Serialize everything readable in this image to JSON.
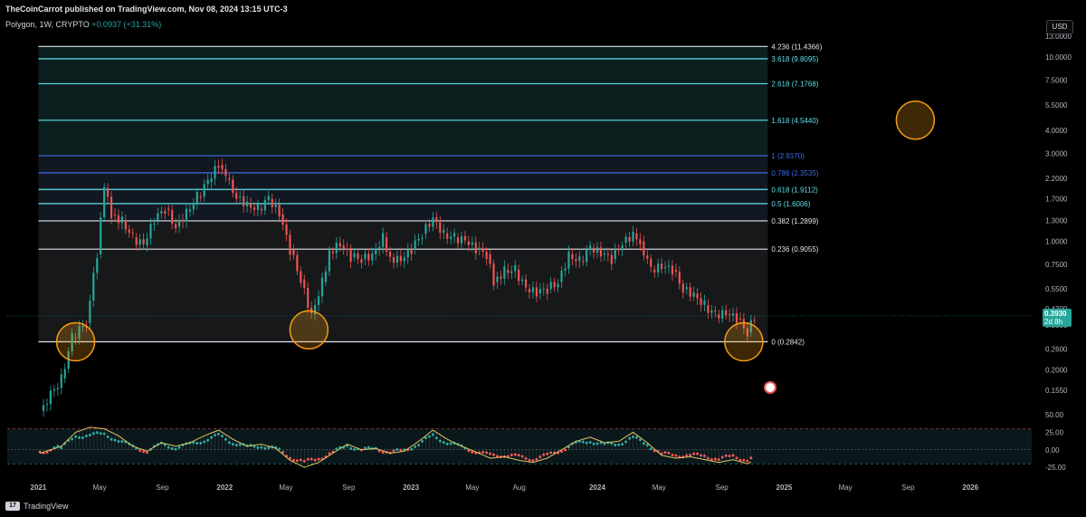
{
  "header": {
    "publisher_line": "TheCoinCarrot published on TradingView.com, Nov 08, 2024 13:15 UTC-3"
  },
  "symbol": {
    "name": "Polygon, 1W, CRYPTO",
    "change": "+0.0937 (+31.31%)"
  },
  "currency_button": "USD",
  "footer": {
    "brand": "TradingView",
    "brand_mark": "17"
  },
  "colors": {
    "up": "#26a69a",
    "down": "#ef5350",
    "fib_white": "#e0e3eb",
    "fib_cyan": "#5ee0e8",
    "fib_blue": "#3d6ce8",
    "circle": "#f39c12",
    "osc_line": "#e0c25c",
    "zone": "#1c3a3a"
  },
  "price_label": {
    "value": "0.3930",
    "countdown": "2d 8h"
  },
  "chart_data": {
    "type": "candlestick",
    "scale": "log",
    "title": "",
    "y_ticks": [
      "13.0000",
      "10.0000",
      "7.5000",
      "5.5000",
      "4.0000",
      "3.0000",
      "2.2000",
      "1.7000",
      "1.3000",
      "1.0000",
      "0.7500",
      "0.5500",
      "0.4300",
      "0.3500",
      "0.2600",
      "0.2000",
      "0.1550"
    ],
    "y_tick_values": [
      13.0,
      10.0,
      7.5,
      5.5,
      4.0,
      3.0,
      2.2,
      1.7,
      1.3,
      1.0,
      0.75,
      0.55,
      0.43,
      0.35,
      0.26,
      0.2,
      0.155
    ],
    "x_ticks": [
      "2021",
      "May",
      "Sep",
      "2022",
      "May",
      "Sep",
      "2023",
      "May",
      "Aug",
      "2024",
      "May",
      "Sep",
      "2025",
      "May",
      "Sep",
      "2026"
    ],
    "x_tick_dates": [
      "2021-01-01",
      "2021-05-01",
      "2021-09-01",
      "2022-01-01",
      "2022-05-01",
      "2022-09-01",
      "2023-01-01",
      "2023-05-01",
      "2023-08-01",
      "2024-01-01",
      "2024-05-01",
      "2024-09-01",
      "2025-01-01",
      "2025-05-01",
      "2025-09-01",
      "2026-01-01"
    ],
    "fib_levels": [
      {
        "label": "4.236 (11.4366)",
        "value": 11.4366,
        "color": "#e0e3eb"
      },
      {
        "label": "3.618 (9.8095)",
        "value": 9.8095,
        "color": "#5ee0e8"
      },
      {
        "label": "2.618 (7.1768)",
        "value": 7.1768,
        "color": "#5ee0e8"
      },
      {
        "label": "1.618 (4.5440)",
        "value": 4.544,
        "color": "#5ee0e8"
      },
      {
        "label": "1 (2.9170)",
        "value": 2.917,
        "color": "#3d6ce8"
      },
      {
        "label": "0.786 (2.3535)",
        "value": 2.3535,
        "color": "#3d6ce8"
      },
      {
        "label": "0.618 (1.9112)",
        "value": 1.9112,
        "color": "#5ee0e8"
      },
      {
        "label": "0.5 (1.6006)",
        "value": 1.6006,
        "color": "#5ee0e8"
      },
      {
        "label": "0.382 (1.2899)",
        "value": 1.2899,
        "color": "#e0e3eb"
      },
      {
        "label": "0.236 (0.9055)",
        "value": 0.9055,
        "color": "#e0e3eb"
      },
      {
        "label": "0 (0.2842)",
        "value": 0.2842,
        "color": "#e0e3eb"
      }
    ],
    "fib_start": "2021-01-01",
    "fib_end": "2024-11-30",
    "circles": [
      {
        "date": "2021-03-15",
        "value": 0.2842
      },
      {
        "date": "2022-06-15",
        "value": 0.33
      },
      {
        "date": "2024-10-14",
        "value": 0.2842
      },
      {
        "date": "2025-09-15",
        "value": 4.544
      }
    ],
    "price_series": [
      [
        "2021-01-04",
        0.12
      ],
      [
        "2021-02-15",
        0.18
      ],
      [
        "2021-03-08",
        0.3
      ],
      [
        "2021-04-05",
        0.36
      ],
      [
        "2021-04-26",
        0.85
      ],
      [
        "2021-05-10",
        1.95
      ],
      [
        "2021-05-24",
        1.4
      ],
      [
        "2021-06-14",
        1.3
      ],
      [
        "2021-07-05",
        1.05
      ],
      [
        "2021-07-26",
        0.95
      ],
      [
        "2021-08-16",
        1.3
      ],
      [
        "2021-09-06",
        1.5
      ],
      [
        "2021-09-27",
        1.2
      ],
      [
        "2021-10-18",
        1.45
      ],
      [
        "2021-11-08",
        1.75
      ],
      [
        "2021-11-29",
        2.1
      ],
      [
        "2021-12-20",
        2.6
      ],
      [
        "2022-01-03",
        2.2
      ],
      [
        "2022-01-24",
        1.75
      ],
      [
        "2022-02-14",
        1.6
      ],
      [
        "2022-03-07",
        1.5
      ],
      [
        "2022-03-28",
        1.7
      ],
      [
        "2022-04-18",
        1.4
      ],
      [
        "2022-05-09",
        0.9
      ],
      [
        "2022-05-30",
        0.62
      ],
      [
        "2022-06-20",
        0.4
      ],
      [
        "2022-07-11",
        0.6
      ],
      [
        "2022-07-25",
        0.88
      ],
      [
        "2022-08-15",
        0.95
      ],
      [
        "2022-09-05",
        0.82
      ],
      [
        "2022-09-26",
        0.8
      ],
      [
        "2022-10-17",
        0.85
      ],
      [
        "2022-11-07",
        1.05
      ],
      [
        "2022-11-21",
        0.82
      ],
      [
        "2022-12-12",
        0.78
      ],
      [
        "2023-01-02",
        0.9
      ],
      [
        "2023-01-23",
        1.1
      ],
      [
        "2023-02-13",
        1.35
      ],
      [
        "2023-03-06",
        1.1
      ],
      [
        "2023-03-27",
        1.05
      ],
      [
        "2023-04-17",
        1.0
      ],
      [
        "2023-05-08",
        0.9
      ],
      [
        "2023-05-29",
        0.85
      ],
      [
        "2023-06-12",
        0.6
      ],
      [
        "2023-07-03",
        0.7
      ],
      [
        "2023-07-24",
        0.7
      ],
      [
        "2023-08-14",
        0.55
      ],
      [
        "2023-09-04",
        0.52
      ],
      [
        "2023-09-25",
        0.55
      ],
      [
        "2023-10-16",
        0.6
      ],
      [
        "2023-11-06",
        0.85
      ],
      [
        "2023-11-27",
        0.78
      ],
      [
        "2023-12-18",
        0.92
      ],
      [
        "2024-01-08",
        0.85
      ],
      [
        "2024-01-29",
        0.8
      ],
      [
        "2024-02-19",
        0.98
      ],
      [
        "2024-03-11",
        1.1
      ],
      [
        "2024-03-25",
        1.0
      ],
      [
        "2024-04-15",
        0.7
      ],
      [
        "2024-05-06",
        0.72
      ],
      [
        "2024-05-27",
        0.7
      ],
      [
        "2024-06-17",
        0.55
      ],
      [
        "2024-07-08",
        0.52
      ],
      [
        "2024-07-29",
        0.45
      ],
      [
        "2024-08-19",
        0.4
      ],
      [
        "2024-09-09",
        0.4
      ],
      [
        "2024-09-30",
        0.38
      ],
      [
        "2024-10-21",
        0.32
      ],
      [
        "2024-11-04",
        0.393
      ]
    ],
    "oscillator": {
      "y_ticks": [
        "50.00",
        "25.00",
        "0.00",
        "-25.00"
      ],
      "y_tick_values": [
        50,
        25,
        0,
        -25
      ],
      "upper_band": 30,
      "lower_band": -20,
      "series": [
        [
          "2021-01-04",
          -5
        ],
        [
          "2021-02-15",
          5
        ],
        [
          "2021-03-15",
          25
        ],
        [
          "2021-04-12",
          32
        ],
        [
          "2021-05-10",
          30
        ],
        [
          "2021-06-07",
          20
        ],
        [
          "2021-07-05",
          5
        ],
        [
          "2021-08-02",
          -2
        ],
        [
          "2021-08-30",
          10
        ],
        [
          "2021-09-27",
          5
        ],
        [
          "2021-10-25",
          10
        ],
        [
          "2021-11-22",
          20
        ],
        [
          "2021-12-20",
          28
        ],
        [
          "2022-01-17",
          15
        ],
        [
          "2022-02-14",
          5
        ],
        [
          "2022-03-14",
          8
        ],
        [
          "2022-04-11",
          2
        ],
        [
          "2022-05-09",
          -15
        ],
        [
          "2022-06-06",
          -25
        ],
        [
          "2022-07-04",
          -18
        ],
        [
          "2022-08-01",
          -5
        ],
        [
          "2022-08-29",
          8
        ],
        [
          "2022-09-26",
          0
        ],
        [
          "2022-10-24",
          2
        ],
        [
          "2022-11-21",
          -5
        ],
        [
          "2022-12-19",
          -2
        ],
        [
          "2023-01-16",
          12
        ],
        [
          "2023-02-13",
          28
        ],
        [
          "2023-03-13",
          15
        ],
        [
          "2023-04-10",
          5
        ],
        [
          "2023-05-08",
          -3
        ],
        [
          "2023-06-05",
          -12
        ],
        [
          "2023-07-03",
          -10
        ],
        [
          "2023-07-31",
          -15
        ],
        [
          "2023-08-28",
          -18
        ],
        [
          "2023-09-25",
          -12
        ],
        [
          "2023-10-23",
          0
        ],
        [
          "2023-11-20",
          12
        ],
        [
          "2023-12-18",
          18
        ],
        [
          "2024-01-15",
          10
        ],
        [
          "2024-02-12",
          12
        ],
        [
          "2024-03-11",
          25
        ],
        [
          "2024-04-08",
          10
        ],
        [
          "2024-05-06",
          -8
        ],
        [
          "2024-06-03",
          -12
        ],
        [
          "2024-07-01",
          -10
        ],
        [
          "2024-07-29",
          -14
        ],
        [
          "2024-08-26",
          -18
        ],
        [
          "2024-09-23",
          -14
        ],
        [
          "2024-10-21",
          -20
        ],
        [
          "2024-11-04",
          -15
        ]
      ]
    }
  }
}
